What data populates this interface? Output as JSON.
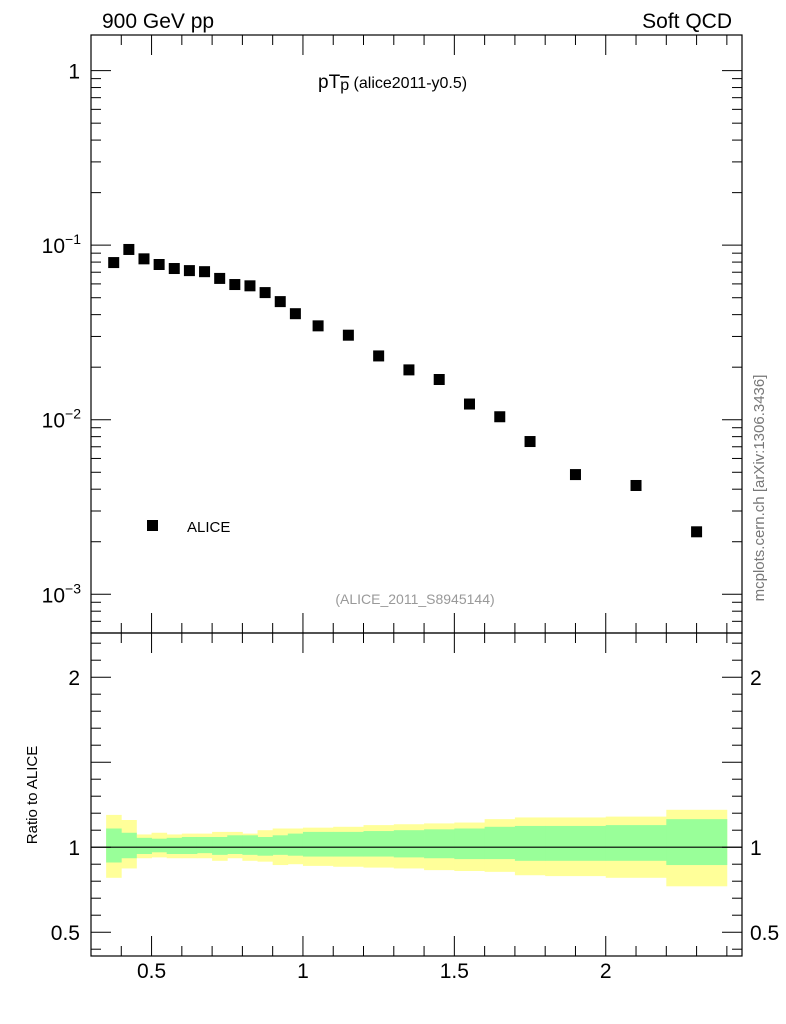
{
  "header": {
    "left": "900 GeV pp",
    "right": "Soft QCD"
  },
  "watermark": "mcplots.cern.ch [arXiv:1306.3436]",
  "analysis_tag": "(ALICE_2011_S8945144)",
  "chart_data": [
    {
      "type": "scatter",
      "title": "pT(p̅) (alice2011-y0.5)",
      "title_main": "pT",
      "title_particle": "p",
      "title_tag": "(alice2011-y0.5)",
      "yscale": "log",
      "ylim": [
        0.0006,
        1.6
      ],
      "xlim": [
        0.3,
        2.45
      ],
      "y_ticks": [
        {
          "value": 1,
          "base": "1",
          "exp": ""
        },
        {
          "value": 0.1,
          "base": "10",
          "exp": "−1"
        },
        {
          "value": 0.01,
          "base": "10",
          "exp": "−2"
        },
        {
          "value": 0.001,
          "base": "10",
          "exp": "−3"
        }
      ],
      "legend": {
        "label": "ALICE",
        "position": "lower-left"
      },
      "series": [
        {
          "name": "ALICE",
          "x": [
            0.375,
            0.425,
            0.475,
            0.525,
            0.575,
            0.625,
            0.675,
            0.725,
            0.775,
            0.825,
            0.875,
            0.925,
            0.975,
            1.05,
            1.15,
            1.25,
            1.35,
            1.45,
            1.55,
            1.65,
            1.75,
            1.9,
            2.1,
            2.3
          ],
          "y": [
            0.0795,
            0.0945,
            0.0835,
            0.0775,
            0.0735,
            0.0715,
            0.0705,
            0.0645,
            0.0595,
            0.0585,
            0.0535,
            0.0475,
            0.0405,
            0.0345,
            0.0305,
            0.0232,
            0.0193,
            0.017,
            0.0123,
            0.0104,
            0.0075,
            0.00485,
            0.0042,
            0.00228
          ]
        }
      ]
    },
    {
      "type": "area",
      "ylabel": "Ratio to ALICE",
      "xlabel": "",
      "ylim": [
        0.36,
        2.26
      ],
      "xlim": [
        0.3,
        2.45
      ],
      "x_ticks": [
        {
          "value": 0.5,
          "label": "0.5"
        },
        {
          "value": 1,
          "label": "1"
        },
        {
          "value": 1.5,
          "label": "1.5"
        },
        {
          "value": 2,
          "label": "2"
        }
      ],
      "y_ticks": [
        {
          "value": 2,
          "label": "2"
        },
        {
          "value": 1,
          "label": "1"
        },
        {
          "value": 0.5,
          "label": "0.5"
        }
      ],
      "reference_line": 1,
      "bin_edges": [
        0.35,
        0.4,
        0.45,
        0.5,
        0.55,
        0.6,
        0.65,
        0.7,
        0.75,
        0.8,
        0.85,
        0.9,
        0.95,
        1.0,
        1.1,
        1.2,
        1.3,
        1.4,
        1.5,
        1.6,
        1.7,
        1.8,
        2.0,
        2.2,
        2.4
      ],
      "bands": [
        {
          "name": "stat",
          "color": "#99ff99",
          "lower": [
            0.91,
            0.935,
            0.96,
            0.97,
            0.96,
            0.96,
            0.965,
            0.955,
            0.96,
            0.955,
            0.95,
            0.955,
            0.95,
            0.945,
            0.945,
            0.945,
            0.94,
            0.935,
            0.93,
            0.93,
            0.92,
            0.92,
            0.92,
            0.895
          ],
          "upper": [
            1.11,
            1.085,
            1.055,
            1.05,
            1.055,
            1.06,
            1.06,
            1.06,
            1.07,
            1.07,
            1.06,
            1.07,
            1.08,
            1.09,
            1.09,
            1.095,
            1.1,
            1.105,
            1.11,
            1.12,
            1.125,
            1.125,
            1.13,
            1.165
          ]
        },
        {
          "name": "syst",
          "color": "#ffff99",
          "lower": [
            0.82,
            0.875,
            0.935,
            0.94,
            0.935,
            0.935,
            0.935,
            0.92,
            0.935,
            0.92,
            0.915,
            0.895,
            0.9,
            0.89,
            0.885,
            0.88,
            0.875,
            0.865,
            0.86,
            0.855,
            0.835,
            0.83,
            0.82,
            0.77
          ],
          "upper": [
            1.19,
            1.16,
            1.075,
            1.085,
            1.075,
            1.08,
            1.08,
            1.09,
            1.09,
            1.08,
            1.1,
            1.11,
            1.11,
            1.115,
            1.12,
            1.13,
            1.135,
            1.14,
            1.145,
            1.165,
            1.175,
            1.175,
            1.18,
            1.22
          ]
        }
      ]
    }
  ]
}
